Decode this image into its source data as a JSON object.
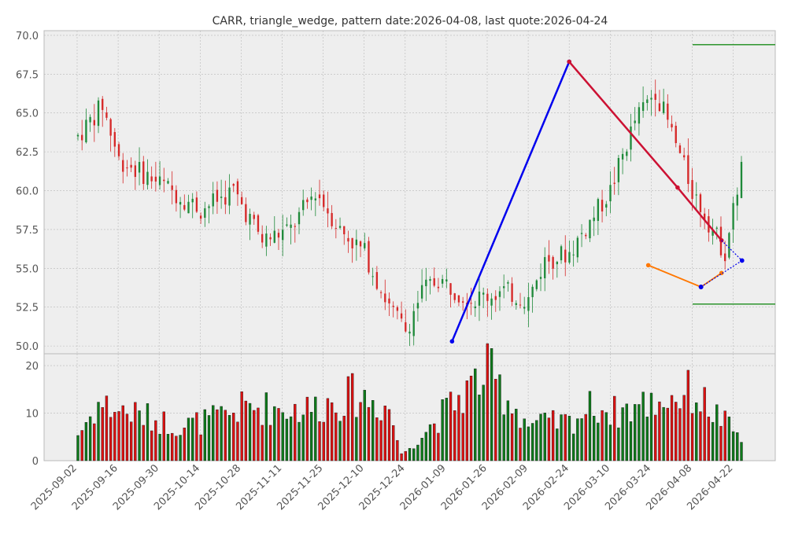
{
  "chart_data": {
    "type": "candlestick",
    "title": "CARR, triangle_wedge, pattern date:2026-04-08, last quote:2026-04-24",
    "colors": {
      "up": "#1f8a3a",
      "down": "#d62828",
      "blue_line": "#0000ee",
      "crimson_line": "#cc1133",
      "orange_line": "#ff7700",
      "green_level": "#1a8c1a",
      "panel_bg": "#eeeeee",
      "grid": "#b8b8b8"
    },
    "price_axis": {
      "ylim": [
        49.5,
        70.3
      ],
      "ticks": [
        "50.0",
        "52.5",
        "55.0",
        "57.5",
        "60.0",
        "62.5",
        "65.0",
        "67.5",
        "70.0"
      ]
    },
    "volume_axis": {
      "ylim": [
        0,
        22.5
      ],
      "ticks": [
        "0",
        "10",
        "20"
      ]
    },
    "x_ticks": [
      "2025-09-02",
      "2025-09-16",
      "2025-09-30",
      "2025-10-14",
      "2025-10-28",
      "2025-11-11",
      "2025-11-25",
      "2025-12-10",
      "2025-12-24",
      "2026-01-09",
      "2026-01-26",
      "2026-02-09",
      "2026-02-24",
      "2026-03-10",
      "2026-03-24",
      "2026-04-08",
      "2026-04-22"
    ],
    "n_bars": 163,
    "series": [
      {
        "anchor_bar": 0,
        "price": 63.5
      },
      {
        "anchor_bar": 6,
        "price": 65.5
      },
      {
        "anchor_bar": 10,
        "price": 62.0
      },
      {
        "anchor_bar": 20,
        "price": 60.5
      },
      {
        "anchor_bar": 30,
        "price": 58.8
      },
      {
        "anchor_bar": 38,
        "price": 60.0
      },
      {
        "anchor_bar": 45,
        "price": 56.8
      },
      {
        "anchor_bar": 52,
        "price": 57.5
      },
      {
        "anchor_bar": 58,
        "price": 60.0
      },
      {
        "anchor_bar": 64,
        "price": 57.5
      },
      {
        "anchor_bar": 70,
        "price": 56.0
      },
      {
        "anchor_bar": 76,
        "price": 52.5
      },
      {
        "anchor_bar": 80,
        "price": 51.0
      },
      {
        "anchor_bar": 84,
        "price": 53.5
      },
      {
        "anchor_bar": 88,
        "price": 54.3
      },
      {
        "anchor_bar": 96,
        "price": 53.0
      },
      {
        "anchor_bar": 104,
        "price": 53.5
      },
      {
        "anchor_bar": 110,
        "price": 53.0
      },
      {
        "anchor_bar": 114,
        "price": 55.5
      },
      {
        "anchor_bar": 120,
        "price": 56.0
      },
      {
        "anchor_bar": 130,
        "price": 60.0
      },
      {
        "anchor_bar": 136,
        "price": 64.5
      },
      {
        "anchor_bar": 141,
        "price": 66.5
      },
      {
        "anchor_bar": 146,
        "price": 63.0
      },
      {
        "anchor_bar": 150,
        "price": 60.0
      },
      {
        "anchor_bar": 154,
        "price": 58.0
      },
      {
        "anchor_bar": 158,
        "price": 56.0
      },
      {
        "anchor_bar": 162,
        "price": 61.5
      }
    ],
    "volume_anchors": [
      {
        "bar": 0,
        "volume": 6.5
      },
      {
        "bar": 5,
        "volume": 14.0
      },
      {
        "bar": 25,
        "volume": 8.5
      },
      {
        "bar": 34,
        "volume": 10.5
      },
      {
        "bar": 41,
        "volume": 13.3
      },
      {
        "bar": 56,
        "volume": 12.8
      },
      {
        "bar": 68,
        "volume": 16.3
      },
      {
        "bar": 76,
        "volume": 13.0
      },
      {
        "bar": 79,
        "volume": 1.5
      },
      {
        "bar": 94,
        "volume": 16.5
      },
      {
        "bar": 100,
        "volume": 22.0
      },
      {
        "bar": 110,
        "volume": 9.0
      },
      {
        "bar": 120,
        "volume": 9.5
      },
      {
        "bar": 126,
        "volume": 13.8
      },
      {
        "bar": 131,
        "volume": 12.0
      },
      {
        "bar": 150,
        "volume": 17.0
      },
      {
        "bar": 162,
        "volume": 5.5
      }
    ],
    "pattern_lines": [
      {
        "name": "rise-line",
        "color": "#0000ee",
        "points": [
          {
            "date": "2026-01-08",
            "price": 50.3
          },
          {
            "date": "2026-02-17",
            "price": 68.3
          }
        ]
      },
      {
        "name": "descending-line",
        "color": "#cc1133",
        "points": [
          {
            "date": "2026-02-17",
            "price": 68.3
          },
          {
            "date": "2026-03-26",
            "price": 60.2
          },
          {
            "date": "2026-04-10",
            "price": 56.8
          }
        ]
      },
      {
        "name": "wedge-lower-line",
        "color": "#ff7700",
        "points": [
          {
            "date": "2026-03-16",
            "price": 55.2
          },
          {
            "date": "2026-04-03",
            "price": 53.8
          },
          {
            "date": "2026-04-10",
            "price": 54.7
          }
        ]
      }
    ],
    "projection_lines": [
      {
        "points": [
          {
            "date": "2026-04-10",
            "price": 56.8
          },
          {
            "date": "2026-04-17",
            "price": 55.5
          }
        ]
      },
      {
        "points": [
          {
            "date": "2026-04-03",
            "price": 53.8
          },
          {
            "date": "2026-04-17",
            "price": 55.5
          }
        ]
      }
    ],
    "levels": [
      {
        "name": "upper-target-level",
        "price": 69.4
      },
      {
        "name": "lower-target-level",
        "price": 52.7
      }
    ]
  }
}
